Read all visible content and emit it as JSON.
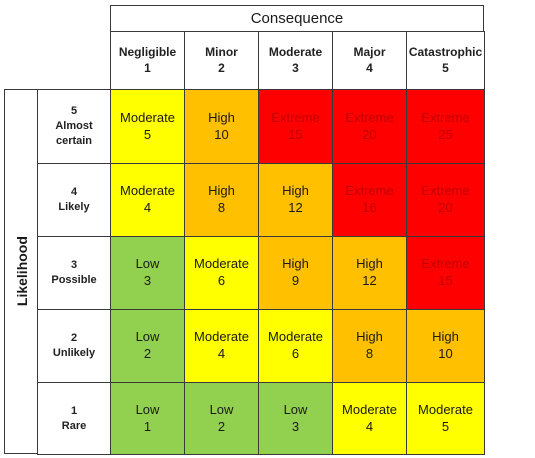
{
  "header": {
    "title": "Consequence"
  },
  "side": {
    "title": "Likelihood"
  },
  "colors": {
    "Low": "#92d050",
    "Moderate": "#ffff00",
    "High": "#ffc000",
    "Extreme": "#ff0000",
    "extreme_text": "#c00000"
  },
  "columns": [
    {
      "name": "Negligible",
      "num": "1"
    },
    {
      "name": "Minor",
      "num": "2"
    },
    {
      "name": "Moderate",
      "num": "3"
    },
    {
      "name": "Major",
      "num": "4"
    },
    {
      "name": "Catastrophic",
      "num": "5"
    }
  ],
  "rows": [
    {
      "num": "5",
      "name_lines": [
        "Almost",
        "certain"
      ],
      "cells": [
        {
          "level": "Moderate",
          "score": "5"
        },
        {
          "level": "High",
          "score": "10"
        },
        {
          "level": "Extreme",
          "score": "15"
        },
        {
          "level": "Extreme",
          "score": "20"
        },
        {
          "level": "Extreme",
          "score": "25"
        }
      ]
    },
    {
      "num": "4",
      "name_lines": [
        "Likely"
      ],
      "cells": [
        {
          "level": "Moderate",
          "score": "4"
        },
        {
          "level": "High",
          "score": "8"
        },
        {
          "level": "High",
          "score": "12"
        },
        {
          "level": "Extreme",
          "score": "16"
        },
        {
          "level": "Extreme",
          "score": "20"
        }
      ]
    },
    {
      "num": "3",
      "name_lines": [
        "Possible"
      ],
      "cells": [
        {
          "level": "Low",
          "score": "3"
        },
        {
          "level": "Moderate",
          "score": "6"
        },
        {
          "level": "High",
          "score": "9"
        },
        {
          "level": "High",
          "score": "12"
        },
        {
          "level": "Extreme",
          "score": "15"
        }
      ]
    },
    {
      "num": "2",
      "name_lines": [
        "Unlikely"
      ],
      "cells": [
        {
          "level": "Low",
          "score": "2"
        },
        {
          "level": "Moderate",
          "score": "4"
        },
        {
          "level": "Moderate",
          "score": "6"
        },
        {
          "level": "High",
          "score": "8"
        },
        {
          "level": "High",
          "score": "10"
        }
      ]
    },
    {
      "num": "1",
      "name_lines": [
        "Rare"
      ],
      "cells": [
        {
          "level": "Low",
          "score": "1"
        },
        {
          "level": "Low",
          "score": "2"
        },
        {
          "level": "Low",
          "score": "3"
        },
        {
          "level": "Moderate",
          "score": "4"
        },
        {
          "level": "Moderate",
          "score": "5"
        }
      ]
    }
  ]
}
